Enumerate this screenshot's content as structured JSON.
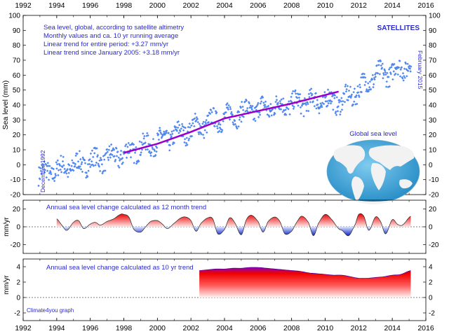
{
  "colors": {
    "points": "#4f86f0",
    "running_avg": "#9a00c8",
    "annotation_text": "#2a2ad2",
    "positive_fill": "#ee1111",
    "negative_fill": "#1a33d6",
    "ocean": "#3aa6d8",
    "land": "#f2f2f2"
  },
  "chart_data": [
    {
      "type": "scatter",
      "panel": "top",
      "title": "",
      "ylabel": "Sea level (mm)",
      "xlim": [
        1992,
        2016
      ],
      "ylim": [
        -20,
        100
      ],
      "x_ticks": [
        1992,
        1994,
        1996,
        1998,
        2000,
        2002,
        2004,
        2006,
        2008,
        2010,
        2012,
        2014,
        2016
      ],
      "y_ticks": [
        -20,
        -10,
        0,
        10,
        20,
        30,
        40,
        50,
        60,
        70,
        80,
        90,
        100
      ],
      "grid": false,
      "annotations": {
        "line1": "Sea level, global, according to satellite altimetry",
        "line2": "Monthly values and ca. 10 yr running average",
        "line3": "Linear trend for entire period: +3.27 mm/yr",
        "line4": "Linear trend since January 2005: +3.18 mm/yr",
        "badge": "SATELLITES",
        "start_label": "December 1992",
        "end_label": "February 2015",
        "globe_label": "Global sea level"
      },
      "series": [
        {
          "kind": "monthly_points",
          "x_range": [
            1992.92,
            2015.13
          ],
          "trend_anchors": [
            [
              1993,
              -6
            ],
            [
              1998,
              7
            ],
            [
              2003,
              28
            ],
            [
              2005,
              35
            ],
            [
              2008,
              41
            ],
            [
              2010,
              43
            ],
            [
              2011,
              42
            ],
            [
              2012,
              50
            ],
            [
              2013,
              60
            ],
            [
              2014,
              62
            ],
            [
              2015,
              67
            ]
          ],
          "scatter_amplitude": 8
        },
        {
          "kind": "running_average",
          "points": [
            [
              1998,
              8
            ],
            [
              2000,
              14
            ],
            [
              2002,
              22
            ],
            [
              2004,
              31
            ],
            [
              2006,
              36
            ],
            [
              2008,
              41
            ],
            [
              2010.8,
              49
            ]
          ]
        }
      ]
    },
    {
      "type": "area",
      "panel": "middle",
      "title": "Annual sea level change calculated as 12 month trend",
      "ylabel": "mm/yr",
      "xlim": [
        1992,
        2016
      ],
      "ylim": [
        -30,
        30
      ],
      "y_ticks": [
        -20,
        0,
        20
      ],
      "baseline": 0,
      "x": [
        1994.0,
        1994.3,
        1994.6,
        1995.0,
        1995.3,
        1995.6,
        1996.0,
        1996.3,
        1996.6,
        1997.0,
        1997.4,
        1997.8,
        1998.0,
        1998.3,
        1998.6,
        1999.0,
        1999.3,
        1999.6,
        2000.0,
        2000.3,
        2000.6,
        2001.0,
        2001.4,
        2001.7,
        2002.0,
        2002.3,
        2002.6,
        2003.0,
        2003.3,
        2003.6,
        2004.0,
        2004.3,
        2004.6,
        2005.0,
        2005.3,
        2005.6,
        2006.0,
        2006.3,
        2006.6,
        2007.0,
        2007.3,
        2007.6,
        2008.0,
        2008.3,
        2008.6,
        2009.0,
        2009.3,
        2009.6,
        2010.0,
        2010.4,
        2010.8,
        2011.0,
        2011.4,
        2011.8,
        2012.0,
        2012.3,
        2012.6,
        2013.0,
        2013.3,
        2013.6,
        2014.0,
        2014.3,
        2014.6,
        2015.1
      ],
      "values": [
        9,
        2,
        -4,
        5,
        7,
        -2,
        3,
        5,
        2,
        6,
        9,
        14,
        14,
        11,
        -3,
        -6,
        0,
        6,
        7,
        3,
        -2,
        4,
        10,
        11,
        7,
        -5,
        4,
        10,
        9,
        -8,
        -3,
        10,
        5,
        -9,
        8,
        13,
        6,
        -6,
        6,
        11,
        6,
        -8,
        -5,
        5,
        12,
        5,
        -10,
        4,
        14,
        8,
        -2,
        -4,
        -10,
        3,
        14,
        12,
        -4,
        11,
        6,
        -8,
        8,
        3,
        2,
        12
      ]
    },
    {
      "type": "area",
      "panel": "bottom",
      "title": "Annual sea level change calculated as 10 yr trend",
      "ylabel": "mm/yr",
      "xlim": [
        1992,
        2016
      ],
      "ylim": [
        -3,
        5
      ],
      "y_ticks": [
        -2,
        0,
        2,
        4
      ],
      "baseline": 0,
      "x": [
        2002.5,
        2003.0,
        2003.5,
        2004.0,
        2004.5,
        2005.0,
        2005.5,
        2006.0,
        2006.5,
        2007.0,
        2007.5,
        2008.0,
        2008.5,
        2009.0,
        2009.5,
        2010.0,
        2010.5,
        2011.0,
        2011.5,
        2012.0,
        2012.5,
        2013.0,
        2013.5,
        2014.0,
        2014.5,
        2015.1
      ],
      "values": [
        3.5,
        3.6,
        3.7,
        3.7,
        3.8,
        3.8,
        3.9,
        3.9,
        3.8,
        3.7,
        3.6,
        3.5,
        3.4,
        3.2,
        3.1,
        3.0,
        2.9,
        2.9,
        2.7,
        2.5,
        2.5,
        2.6,
        2.7,
        2.9,
        3.0,
        3.5
      ],
      "credit": "Climate4you graph"
    }
  ]
}
